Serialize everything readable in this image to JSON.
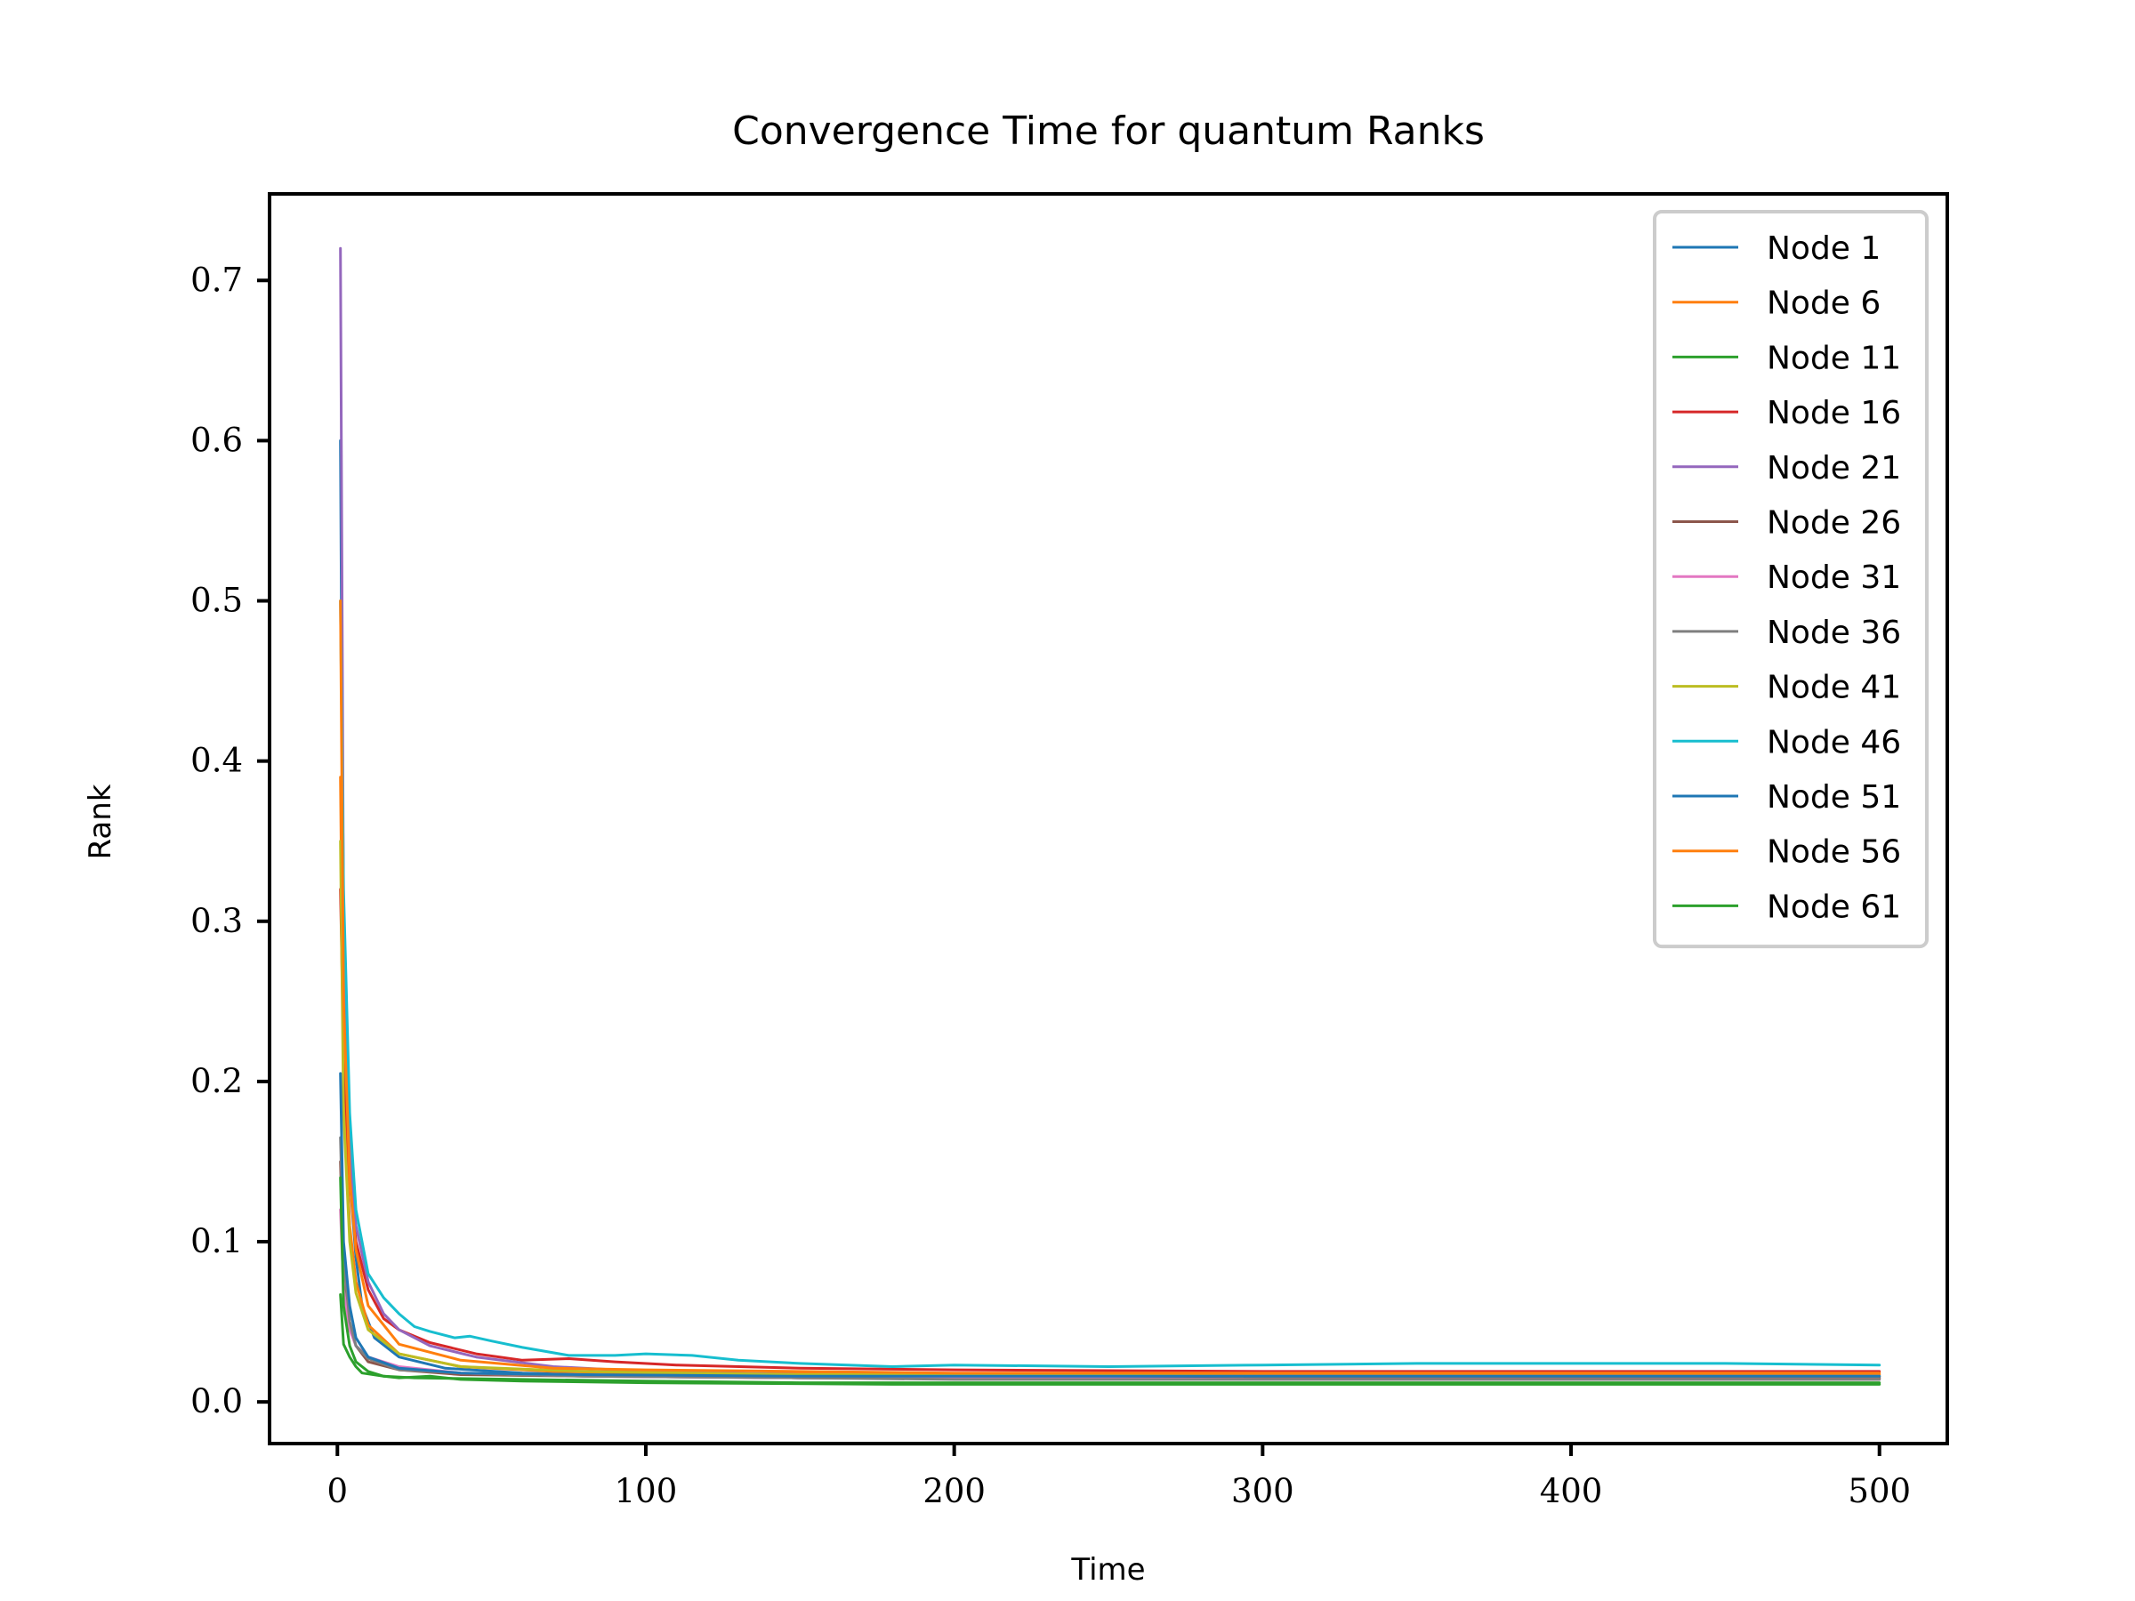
{
  "chart_data": {
    "type": "line",
    "title": "Convergence Time for quantum Ranks",
    "xlabel": "Time",
    "ylabel": "Rank",
    "xlim": [
      -22,
      522
    ],
    "ylim": [
      -0.026,
      0.754
    ],
    "xticks": [
      0,
      100,
      200,
      300,
      400,
      500
    ],
    "yticks": [
      0.0,
      0.1,
      0.2,
      0.3,
      0.4,
      0.5,
      0.6,
      0.7
    ],
    "xtick_labels": [
      "0",
      "100",
      "200",
      "300",
      "400",
      "500"
    ],
    "ytick_labels": [
      "0.0",
      "0.1",
      "0.2",
      "0.3",
      "0.4",
      "0.5",
      "0.6",
      "0.7"
    ],
    "grid": false,
    "legend_position": "top-right",
    "series": [
      {
        "name": "Node 1",
        "color": "#1f77b4",
        "points": [
          [
            1,
            0.6
          ],
          [
            2,
            0.26
          ],
          [
            4,
            0.14
          ],
          [
            6,
            0.09
          ],
          [
            8,
            0.06
          ],
          [
            12,
            0.04
          ],
          [
            20,
            0.028
          ],
          [
            35,
            0.021
          ],
          [
            60,
            0.018
          ],
          [
            100,
            0.016
          ],
          [
            150,
            0.015
          ],
          [
            200,
            0.015
          ],
          [
            300,
            0.015
          ],
          [
            400,
            0.015
          ],
          [
            500,
            0.015
          ]
        ]
      },
      {
        "name": "Node 6",
        "color": "#ff7f0e",
        "points": [
          [
            1,
            0.39
          ],
          [
            2,
            0.2
          ],
          [
            4,
            0.11
          ],
          [
            6,
            0.075
          ],
          [
            10,
            0.048
          ],
          [
            20,
            0.03
          ],
          [
            40,
            0.022
          ],
          [
            70,
            0.019
          ],
          [
            100,
            0.018
          ],
          [
            200,
            0.017
          ],
          [
            300,
            0.017
          ],
          [
            400,
            0.017
          ],
          [
            500,
            0.017
          ]
        ]
      },
      {
        "name": "Node 11",
        "color": "#2ca02c",
        "points": [
          [
            1,
            0.067
          ],
          [
            2,
            0.036
          ],
          [
            4,
            0.028
          ],
          [
            6,
            0.022
          ],
          [
            8,
            0.018
          ],
          [
            15,
            0.016
          ],
          [
            25,
            0.015
          ],
          [
            60,
            0.014
          ],
          [
            100,
            0.013
          ],
          [
            150,
            0.012
          ],
          [
            200,
            0.012
          ],
          [
            300,
            0.012
          ],
          [
            400,
            0.012
          ],
          [
            500,
            0.012
          ]
        ]
      },
      {
        "name": "Node 16",
        "color": "#d62728",
        "points": [
          [
            1,
            0.32
          ],
          [
            2,
            0.22
          ],
          [
            4,
            0.14
          ],
          [
            6,
            0.1
          ],
          [
            10,
            0.07
          ],
          [
            15,
            0.052
          ],
          [
            20,
            0.045
          ],
          [
            30,
            0.037
          ],
          [
            45,
            0.03
          ],
          [
            60,
            0.026
          ],
          [
            75,
            0.027
          ],
          [
            90,
            0.025
          ],
          [
            110,
            0.023
          ],
          [
            150,
            0.021
          ],
          [
            200,
            0.02
          ],
          [
            300,
            0.019
          ],
          [
            400,
            0.019
          ],
          [
            500,
            0.019
          ]
        ]
      },
      {
        "name": "Node 21",
        "color": "#9467bd",
        "points": [
          [
            1,
            0.72
          ],
          [
            2,
            0.3
          ],
          [
            4,
            0.16
          ],
          [
            6,
            0.11
          ],
          [
            10,
            0.075
          ],
          [
            15,
            0.055
          ],
          [
            20,
            0.045
          ],
          [
            30,
            0.035
          ],
          [
            45,
            0.028
          ],
          [
            70,
            0.022
          ],
          [
            100,
            0.019
          ],
          [
            150,
            0.017
          ],
          [
            200,
            0.016
          ],
          [
            300,
            0.016
          ],
          [
            400,
            0.016
          ],
          [
            500,
            0.016
          ]
        ]
      },
      {
        "name": "Node 26",
        "color": "#8c564b",
        "points": [
          [
            1,
            0.15
          ],
          [
            2,
            0.08
          ],
          [
            4,
            0.05
          ],
          [
            6,
            0.035
          ],
          [
            10,
            0.025
          ],
          [
            20,
            0.02
          ],
          [
            40,
            0.017
          ],
          [
            80,
            0.016
          ],
          [
            150,
            0.015
          ],
          [
            200,
            0.015
          ],
          [
            300,
            0.015
          ],
          [
            400,
            0.015
          ],
          [
            500,
            0.015
          ]
        ]
      },
      {
        "name": "Node 31",
        "color": "#e377c2",
        "points": [
          [
            1,
            0.12
          ],
          [
            2,
            0.07
          ],
          [
            4,
            0.045
          ],
          [
            6,
            0.035
          ],
          [
            10,
            0.028
          ],
          [
            20,
            0.022
          ],
          [
            40,
            0.018
          ],
          [
            80,
            0.016
          ],
          [
            150,
            0.015
          ],
          [
            200,
            0.015
          ],
          [
            300,
            0.014
          ],
          [
            400,
            0.014
          ],
          [
            500,
            0.014
          ]
        ]
      },
      {
        "name": "Node 36",
        "color": "#7f7f7f",
        "points": [
          [
            1,
            0.165
          ],
          [
            2,
            0.09
          ],
          [
            4,
            0.05
          ],
          [
            6,
            0.035
          ],
          [
            10,
            0.027
          ],
          [
            20,
            0.02
          ],
          [
            40,
            0.018
          ],
          [
            80,
            0.016
          ],
          [
            150,
            0.015
          ],
          [
            200,
            0.014
          ],
          [
            300,
            0.014
          ],
          [
            400,
            0.014
          ],
          [
            500,
            0.014
          ]
        ]
      },
      {
        "name": "Node 41",
        "color": "#bcbd22",
        "points": [
          [
            1,
            0.35
          ],
          [
            2,
            0.18
          ],
          [
            4,
            0.1
          ],
          [
            6,
            0.068
          ],
          [
            10,
            0.045
          ],
          [
            20,
            0.03
          ],
          [
            40,
            0.022
          ],
          [
            80,
            0.019
          ],
          [
            150,
            0.017
          ],
          [
            200,
            0.017
          ],
          [
            300,
            0.016
          ],
          [
            400,
            0.016
          ],
          [
            500,
            0.016
          ]
        ]
      },
      {
        "name": "Node 46",
        "color": "#17becf",
        "points": [
          [
            1,
            0.5
          ],
          [
            2,
            0.32
          ],
          [
            4,
            0.18
          ],
          [
            6,
            0.12
          ],
          [
            10,
            0.08
          ],
          [
            15,
            0.065
          ],
          [
            20,
            0.055
          ],
          [
            25,
            0.047
          ],
          [
            30,
            0.044
          ],
          [
            38,
            0.04
          ],
          [
            43,
            0.041
          ],
          [
            50,
            0.038
          ],
          [
            60,
            0.034
          ],
          [
            75,
            0.029
          ],
          [
            90,
            0.029
          ],
          [
            100,
            0.03
          ],
          [
            115,
            0.029
          ],
          [
            130,
            0.026
          ],
          [
            150,
            0.024
          ],
          [
            180,
            0.022
          ],
          [
            200,
            0.023
          ],
          [
            250,
            0.022
          ],
          [
            300,
            0.023
          ],
          [
            350,
            0.024
          ],
          [
            400,
            0.024
          ],
          [
            450,
            0.024
          ],
          [
            500,
            0.023
          ]
        ]
      },
      {
        "name": "Node 51",
        "color": "#1f77b4",
        "points": [
          [
            1,
            0.205
          ],
          [
            2,
            0.1
          ],
          [
            4,
            0.06
          ],
          [
            6,
            0.04
          ],
          [
            10,
            0.028
          ],
          [
            20,
            0.021
          ],
          [
            40,
            0.018
          ],
          [
            80,
            0.017
          ],
          [
            150,
            0.016
          ],
          [
            200,
            0.016
          ],
          [
            300,
            0.016
          ],
          [
            400,
            0.016
          ],
          [
            500,
            0.016
          ]
        ]
      },
      {
        "name": "Node 56",
        "color": "#ff7f0e",
        "points": [
          [
            1,
            0.5
          ],
          [
            2,
            0.25
          ],
          [
            4,
            0.14
          ],
          [
            6,
            0.095
          ],
          [
            10,
            0.06
          ],
          [
            20,
            0.036
          ],
          [
            40,
            0.026
          ],
          [
            70,
            0.021
          ],
          [
            100,
            0.02
          ],
          [
            150,
            0.019
          ],
          [
            200,
            0.018
          ],
          [
            300,
            0.018
          ],
          [
            400,
            0.018
          ],
          [
            500,
            0.018
          ]
        ]
      },
      {
        "name": "Node 61",
        "color": "#2ca02c",
        "points": [
          [
            1,
            0.14
          ],
          [
            2,
            0.06
          ],
          [
            4,
            0.035
          ],
          [
            6,
            0.025
          ],
          [
            10,
            0.019
          ],
          [
            15,
            0.016
          ],
          [
            20,
            0.015
          ],
          [
            30,
            0.016
          ],
          [
            40,
            0.014
          ],
          [
            60,
            0.013
          ],
          [
            100,
            0.012
          ],
          [
            180,
            0.011
          ],
          [
            300,
            0.011
          ],
          [
            400,
            0.011
          ],
          [
            500,
            0.011
          ]
        ]
      }
    ]
  }
}
